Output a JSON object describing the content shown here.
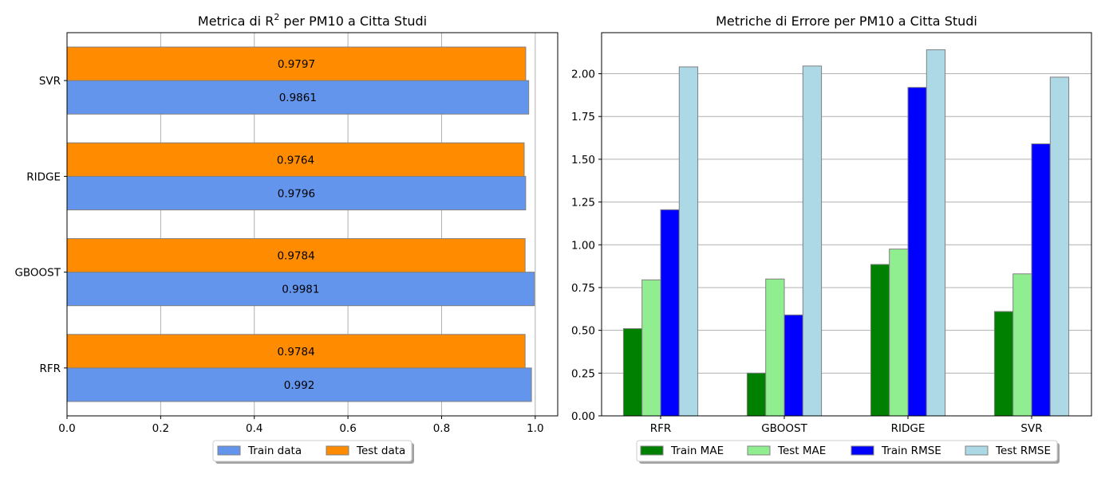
{
  "chart_data": [
    {
      "type": "bar",
      "orientation": "horizontal",
      "title_prefix": "Metrica di R",
      "title_sup": "2",
      "title_suffix": " per PM10 a Citta Studi",
      "categories": [
        "RFR",
        "GBOOST",
        "RIDGE",
        "SVR"
      ],
      "series": [
        {
          "name": "Train data",
          "values": [
            0.992,
            0.9981,
            0.9796,
            0.9861
          ],
          "color": "#6495ED"
        },
        {
          "name": "Test data",
          "values": [
            0.9784,
            0.9784,
            0.9764,
            0.9797
          ],
          "color": "#FF8C00"
        }
      ],
      "data_labels": {
        "Train data": [
          "0.992",
          "0.9981",
          "0.9796",
          "0.9861"
        ],
        "Test data": [
          "0.9784",
          "0.9784",
          "0.9764",
          "0.9797"
        ]
      },
      "xlim": [
        0,
        1.048
      ],
      "xticks": [
        0.0,
        0.2,
        0.4,
        0.6,
        0.8,
        1.0
      ],
      "xtick_labels": [
        "0.0",
        "0.2",
        "0.4",
        "0.6",
        "0.8",
        "1.0"
      ],
      "grid": "x",
      "legend": "bottom-center"
    },
    {
      "type": "bar",
      "title": "Metriche di Errore per PM10 a Citta Studi",
      "categories": [
        "RFR",
        "GBOOST",
        "RIDGE",
        "SVR"
      ],
      "series": [
        {
          "name": "Train MAE",
          "values": [
            0.51,
            0.25,
            0.885,
            0.61
          ],
          "color": "#008000"
        },
        {
          "name": "Test MAE",
          "values": [
            0.795,
            0.8,
            0.975,
            0.83
          ],
          "color": "#90EE90"
        },
        {
          "name": "Train RMSE",
          "values": [
            1.205,
            0.59,
            1.92,
            1.59
          ],
          "color": "#0000FF"
        },
        {
          "name": "Test RMSE",
          "values": [
            2.04,
            2.045,
            2.14,
            1.98
          ],
          "color": "#ADD8E6"
        }
      ],
      "ylim": [
        0,
        2.24
      ],
      "yticks": [
        0.0,
        0.25,
        0.5,
        0.75,
        1.0,
        1.25,
        1.5,
        1.75,
        2.0
      ],
      "ytick_labels": [
        "0.00",
        "0.25",
        "0.50",
        "0.75",
        "1.00",
        "1.25",
        "1.50",
        "1.75",
        "2.00"
      ],
      "grid": "y",
      "legend": "bottom-center"
    }
  ]
}
